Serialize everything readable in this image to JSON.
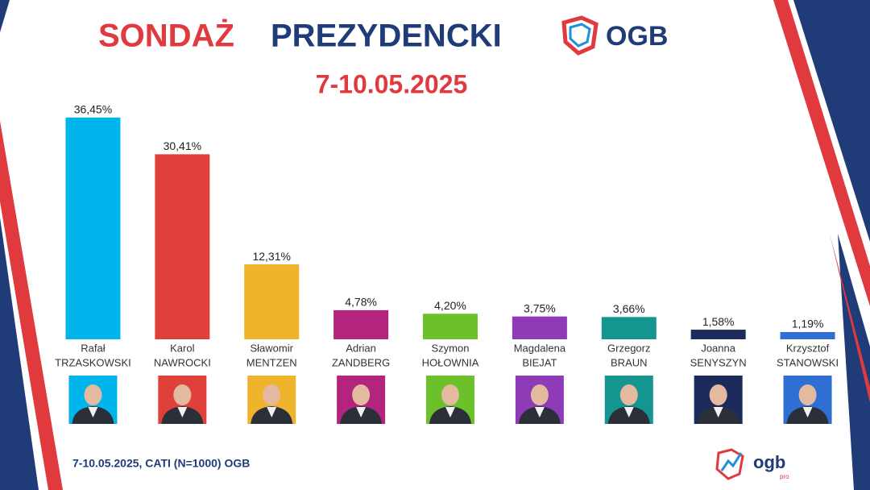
{
  "chart_data": {
    "type": "bar",
    "title": [
      "SONDAŻ",
      "PREZYDENCKI"
    ],
    "subtitle": "7-10.05.2025",
    "logo": "OGB",
    "source": "7-10.05.2025, CATI (N=1000) OGB",
    "footer_logo": [
      "ogb",
      "pro"
    ],
    "categories": [
      [
        "Rafał",
        "TRZASKOWSKI"
      ],
      [
        "Karol",
        "NAWROCKI"
      ],
      [
        "Sławomir",
        "MENTZEN"
      ],
      [
        "Adrian",
        "ZANDBERG"
      ],
      [
        "Szymon",
        "HOŁOWNIA"
      ],
      [
        "Magdalena",
        "BIEJAT"
      ],
      [
        "Grzegorz",
        "BRAUN"
      ],
      [
        "Joanna",
        "SENYSZYN"
      ],
      [
        "Krzysztof",
        "STANOWSKI"
      ]
    ],
    "values": [
      36.45,
      30.41,
      12.31,
      4.78,
      4.2,
      3.75,
      3.66,
      1.58,
      1.19
    ],
    "value_labels": [
      "36,45%",
      "30,41%",
      "12,31%",
      "4,78%",
      "4,20%",
      "3,75%",
      "3,66%",
      "1,58%",
      "1,19%"
    ],
    "colors": [
      "#00b5ec",
      "#e0403a",
      "#f0b42c",
      "#b3247f",
      "#6cc12a",
      "#8f3bb8",
      "#15958f",
      "#1c2b5c",
      "#2f6fd3"
    ],
    "ylim": [
      0,
      40
    ]
  }
}
